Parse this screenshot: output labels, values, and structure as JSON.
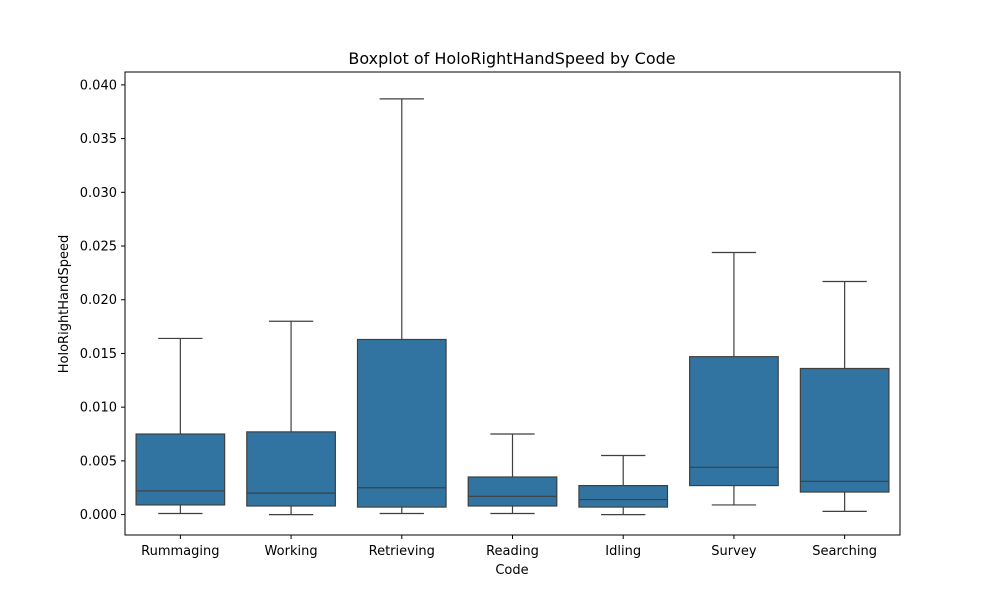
{
  "chart_data": {
    "type": "boxplot",
    "title": "Boxplot of HoloRightHandSpeed by Code",
    "xlabel": "Code",
    "ylabel": "HoloRightHandSpeed",
    "ylim": [
      -0.0019,
      0.0412
    ],
    "yticks": [
      0.0,
      0.005,
      0.01,
      0.015,
      0.02,
      0.025,
      0.03,
      0.035,
      0.04
    ],
    "ytick_labels": [
      "0.000",
      "0.005",
      "0.010",
      "0.015",
      "0.020",
      "0.025",
      "0.030",
      "0.035",
      "0.040"
    ],
    "categories": [
      "Rummaging",
      "Working",
      "Retrieving",
      "Reading",
      "Idling",
      "Survey",
      "Searching"
    ],
    "boxes": [
      {
        "whisker_low": 0.0001,
        "q1": 0.0009,
        "median": 0.0022,
        "q3": 0.0075,
        "whisker_high": 0.0164
      },
      {
        "whisker_low": 0.0,
        "q1": 0.0008,
        "median": 0.002,
        "q3": 0.0077,
        "whisker_high": 0.018
      },
      {
        "whisker_low": 0.0001,
        "q1": 0.0007,
        "median": 0.0025,
        "q3": 0.0163,
        "whisker_high": 0.0387
      },
      {
        "whisker_low": 0.0001,
        "q1": 0.0008,
        "median": 0.0017,
        "q3": 0.0035,
        "whisker_high": 0.0075
      },
      {
        "whisker_low": 0.0,
        "q1": 0.0007,
        "median": 0.0014,
        "q3": 0.0027,
        "whisker_high": 0.0055
      },
      {
        "whisker_low": 0.0009,
        "q1": 0.0027,
        "median": 0.0044,
        "q3": 0.0147,
        "whisker_high": 0.0244
      },
      {
        "whisker_low": 0.0003,
        "q1": 0.0021,
        "median": 0.0031,
        "q3": 0.0136,
        "whisker_high": 0.0217
      }
    ],
    "box_color": "#3274a1",
    "line_color": "#3f3f3f",
    "grid": false
  }
}
